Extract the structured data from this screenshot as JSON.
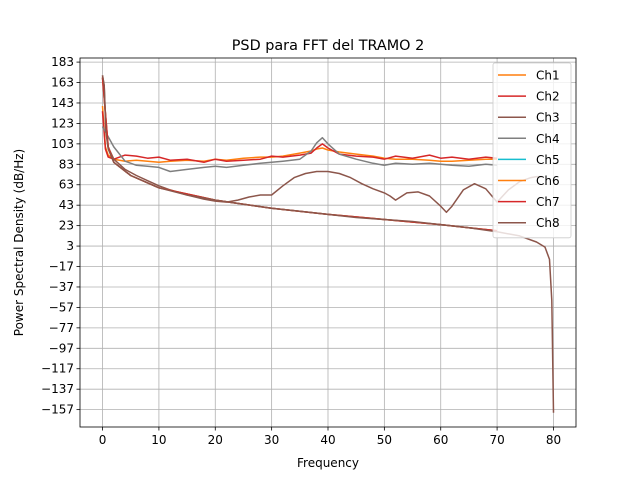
{
  "chart_data": {
    "type": "line",
    "title": "PSD para FFT del TRAMO 2",
    "xlabel": "Frequency",
    "ylabel": "Power Spectral Density (dB/Hz)",
    "xlim": [
      -4,
      84
    ],
    "ylim": [
      -174,
      187
    ],
    "xticks": [
      0,
      10,
      20,
      30,
      40,
      50,
      60,
      70,
      80
    ],
    "xtick_labels": [
      "0",
      "10",
      "20",
      "30",
      "40",
      "50",
      "60",
      "70",
      "80"
    ],
    "yticks": [
      183,
      163,
      143,
      123,
      103,
      83,
      63,
      43,
      23,
      3,
      -17,
      -37,
      -57,
      -77,
      -97,
      -117,
      -137,
      -157
    ],
    "ytick_labels": [
      "183",
      "163",
      "143",
      "123",
      "103",
      "83",
      "63",
      "43",
      "23",
      "3",
      "−17",
      "−37",
      "−57",
      "−77",
      "−97",
      "−117",
      "−137",
      "−157"
    ],
    "grid": true,
    "legend_position": "top-right",
    "series": [
      {
        "name": "Ch1",
        "color": "#ff7f0e",
        "x": [
          0,
          0.5,
          1,
          2,
          4,
          6,
          8,
          10,
          12,
          15,
          18,
          20,
          22,
          25,
          28,
          30,
          32,
          35,
          37,
          38,
          39,
          40,
          42,
          45,
          48,
          50,
          52,
          55,
          58,
          60,
          62,
          65,
          68,
          70
        ],
        "y": [
          140,
          100,
          92,
          88,
          86,
          87,
          86,
          85,
          86,
          87,
          86,
          88,
          87,
          89,
          90,
          90,
          91,
          94,
          96,
          98,
          99,
          97,
          95,
          93,
          91,
          89,
          88,
          88,
          87,
          86,
          86,
          87,
          88,
          88
        ]
      },
      {
        "name": "Ch2",
        "color": "#d62728",
        "x": [
          0,
          0.5,
          1,
          2,
          4,
          6,
          8,
          10,
          12,
          15,
          18,
          20,
          22,
          25,
          28,
          30,
          32,
          35,
          37,
          38,
          39,
          40,
          42,
          45,
          48,
          50,
          52,
          55,
          58,
          60,
          62,
          65,
          68,
          70
        ],
        "y": [
          135,
          98,
          90,
          88,
          92,
          91,
          89,
          90,
          87,
          88,
          85,
          88,
          86,
          87,
          88,
          91,
          90,
          92,
          94,
          99,
          103,
          99,
          93,
          91,
          90,
          88,
          91,
          89,
          92,
          89,
          90,
          88,
          90,
          89
        ]
      },
      {
        "name": "Ch3",
        "color": "#8c564b",
        "x": [
          0,
          0.3,
          0.6,
          1,
          2,
          4,
          6,
          8,
          10,
          12,
          15,
          18,
          20,
          22,
          24,
          26,
          28,
          30,
          32,
          34,
          36,
          38,
          40,
          42,
          44,
          46,
          48,
          50,
          51,
          52,
          54,
          56,
          58,
          60,
          61,
          62,
          64,
          66,
          68,
          70,
          72,
          74,
          76,
          77,
          78
        ],
        "y": [
          170,
          160,
          118,
          100,
          88,
          78,
          72,
          67,
          62,
          58,
          53,
          49,
          47,
          46,
          48,
          51,
          53,
          53,
          62,
          70,
          74,
          76,
          76,
          74,
          70,
          64,
          59,
          55,
          52,
          48,
          55,
          56,
          52,
          42,
          36,
          42,
          58,
          64,
          59,
          46,
          58,
          66,
          70,
          71,
          71
        ]
      },
      {
        "name": "Ch4",
        "color": "#7f7f7f",
        "x": [
          0,
          0.5,
          1,
          2,
          4,
          6,
          8,
          10,
          12,
          15,
          18,
          20,
          22,
          25,
          28,
          30,
          32,
          35,
          37,
          38,
          39,
          40,
          42,
          45,
          48,
          50,
          52,
          55,
          58,
          60,
          62,
          65,
          68,
          70
        ],
        "y": [
          120,
          115,
          110,
          100,
          86,
          82,
          81,
          80,
          76,
          78,
          80,
          81,
          80,
          82,
          84,
          85,
          86,
          88,
          96,
          104,
          109,
          103,
          93,
          88,
          84,
          82,
          84,
          83,
          84,
          83,
          82,
          81,
          83,
          82
        ]
      },
      {
        "name": "Ch5",
        "color": "#17becf",
        "x": [
          0,
          1,
          2,
          5,
          10,
          20,
          30,
          40,
          50,
          60,
          65,
          70
        ],
        "y": [
          168,
          100,
          85,
          72,
          60,
          48,
          40,
          34,
          29,
          24,
          21,
          18
        ]
      },
      {
        "name": "Ch6",
        "color": "#ff7f0e",
        "x": [
          0,
          1,
          2,
          5,
          10,
          20,
          30,
          40,
          50,
          60,
          65,
          70
        ],
        "y": [
          168,
          100,
          85,
          72,
          60,
          48,
          40,
          34,
          29,
          24,
          21,
          18
        ]
      },
      {
        "name": "Ch7",
        "color": "#d62728",
        "x": [
          0,
          1,
          2,
          5,
          10,
          20,
          30,
          40,
          50,
          60,
          65,
          70
        ],
        "y": [
          168,
          100,
          85,
          72,
          60,
          48,
          40,
          34,
          29,
          24,
          21,
          18
        ]
      },
      {
        "name": "Ch8",
        "color": "#8c564b",
        "x": [
          0,
          0.3,
          0.6,
          1,
          2,
          5,
          10,
          15,
          20,
          25,
          30,
          35,
          40,
          45,
          50,
          55,
          60,
          65,
          70,
          74,
          77,
          78.5,
          79.3,
          79.7,
          80
        ],
        "y": [
          170,
          160,
          115,
          98,
          85,
          72,
          60,
          53,
          48,
          44,
          40,
          37,
          34,
          31,
          29,
          27,
          24,
          21,
          17,
          13,
          7,
          2,
          -10,
          -50,
          -160
        ]
      }
    ]
  }
}
